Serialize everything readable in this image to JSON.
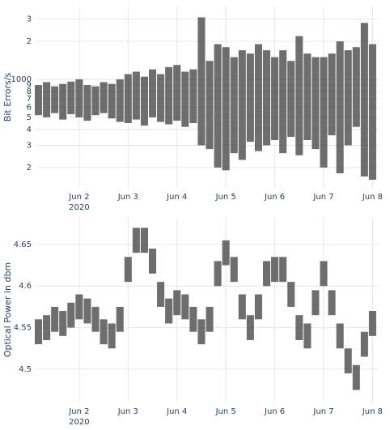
{
  "chart_data": [
    {
      "type": "range",
      "ylabel": "Bit Errors/s",
      "log_y": true,
      "grid": true,
      "color": "#4a4a4a",
      "x": [
        "2020-06-01T04:00",
        "2020-06-01T08:00",
        "2020-06-01T12:00",
        "2020-06-01T16:00",
        "2020-06-01T20:00",
        "2020-06-02T00:00",
        "2020-06-02T04:00",
        "2020-06-02T08:00",
        "2020-06-02T12:00",
        "2020-06-02T16:00",
        "2020-06-02T20:00",
        "2020-06-03T00:00",
        "2020-06-03T04:00",
        "2020-06-03T08:00",
        "2020-06-03T12:00",
        "2020-06-03T16:00",
        "2020-06-03T20:00",
        "2020-06-04T00:00",
        "2020-06-04T04:00",
        "2020-06-04T08:00",
        "2020-06-04T12:00",
        "2020-06-04T16:00",
        "2020-06-04T20:00",
        "2020-06-05T00:00",
        "2020-06-05T04:00",
        "2020-06-05T08:00",
        "2020-06-05T12:00",
        "2020-06-05T16:00",
        "2020-06-05T20:00",
        "2020-06-06T00:00",
        "2020-06-06T04:00",
        "2020-06-06T08:00",
        "2020-06-06T12:00",
        "2020-06-06T16:00",
        "2020-06-06T20:00",
        "2020-06-07T00:00",
        "2020-06-07T04:00",
        "2020-06-07T08:00",
        "2020-06-07T12:00",
        "2020-06-07T16:00",
        "2020-06-07T20:00",
        "2020-06-08T00:00"
      ],
      "low": [
        520,
        500,
        540,
        480,
        530,
        500,
        470,
        520,
        540,
        490,
        460,
        450,
        480,
        430,
        500,
        460,
        440,
        470,
        420,
        450,
        300,
        280,
        200,
        190,
        260,
        230,
        320,
        270,
        300,
        330,
        260,
        350,
        250,
        330,
        280,
        200,
        360,
        180,
        300,
        420,
        170,
        160
      ],
      "high": [
        900,
        950,
        880,
        920,
        960,
        1000,
        900,
        880,
        950,
        920,
        1000,
        1100,
        1150,
        1050,
        1200,
        1100,
        1250,
        1300,
        1150,
        1200,
        3100,
        1400,
        1900,
        1800,
        1500,
        1700,
        1600,
        1900,
        1700,
        1500,
        1700,
        1400,
        2200,
        1600,
        1500,
        1500,
        1600,
        2000,
        1700,
        1800,
        2800,
        1900
      ],
      "xlim": [
        "2020-06-01T03:00",
        "2020-06-08T03:00"
      ],
      "xticks": [
        {
          "value": "2020-06-02T00:00",
          "label": "Jun 2"
        },
        {
          "value": "2020-06-03T00:00",
          "label": "Jun 3"
        },
        {
          "value": "2020-06-04T00:00",
          "label": "Jun 4"
        },
        {
          "value": "2020-06-05T00:00",
          "label": "Jun 5"
        },
        {
          "value": "2020-06-06T00:00",
          "label": "Jun 6"
        },
        {
          "value": "2020-06-07T00:00",
          "label": "Jun 7"
        },
        {
          "value": "2020-06-08T00:00",
          "label": "Jun 8"
        }
      ],
      "x_year_label": "2020",
      "ylim": [
        138,
        3780
      ],
      "yticks": [
        {
          "value": 200,
          "label": "2"
        },
        {
          "value": 300,
          "label": "3"
        },
        {
          "value": 400,
          "label": "4"
        },
        {
          "value": 500,
          "label": "5"
        },
        {
          "value": 600,
          "label": "6"
        },
        {
          "value": 700,
          "label": "7"
        },
        {
          "value": 800,
          "label": "8"
        },
        {
          "value": 900,
          "label": "9"
        },
        1000,
        {
          "value": 2000,
          "label": "2"
        },
        {
          "value": 3000,
          "label": "3"
        }
      ]
    },
    {
      "type": "range",
      "ylabel": "Optical Power in dbm",
      "log_y": false,
      "grid": true,
      "color": "#4a4a4a",
      "x": [
        "2020-06-01T04:00",
        "2020-06-01T08:00",
        "2020-06-01T12:00",
        "2020-06-01T16:00",
        "2020-06-01T20:00",
        "2020-06-02T00:00",
        "2020-06-02T04:00",
        "2020-06-02T08:00",
        "2020-06-02T12:00",
        "2020-06-02T16:00",
        "2020-06-02T20:00",
        "2020-06-03T00:00",
        "2020-06-03T04:00",
        "2020-06-03T08:00",
        "2020-06-03T12:00",
        "2020-06-03T16:00",
        "2020-06-03T20:00",
        "2020-06-04T00:00",
        "2020-06-04T04:00",
        "2020-06-04T08:00",
        "2020-06-04T12:00",
        "2020-06-04T16:00",
        "2020-06-04T20:00",
        "2020-06-05T00:00",
        "2020-06-05T04:00",
        "2020-06-05T08:00",
        "2020-06-05T12:00",
        "2020-06-05T16:00",
        "2020-06-05T20:00",
        "2020-06-06T00:00",
        "2020-06-06T04:00",
        "2020-06-06T08:00",
        "2020-06-06T12:00",
        "2020-06-06T16:00",
        "2020-06-06T20:00",
        "2020-06-07T00:00",
        "2020-06-07T04:00",
        "2020-06-07T08:00",
        "2020-06-07T12:00",
        "2020-06-07T16:00",
        "2020-06-07T20:00",
        "2020-06-08T00:00"
      ],
      "low": [
        4.53,
        4.535,
        4.545,
        4.54,
        4.55,
        4.56,
        4.555,
        4.545,
        4.53,
        4.525,
        4.545,
        4.605,
        4.64,
        4.64,
        4.615,
        4.575,
        4.555,
        4.565,
        4.56,
        4.545,
        4.53,
        4.545,
        4.6,
        4.625,
        4.605,
        4.56,
        4.535,
        4.56,
        4.6,
        4.605,
        4.605,
        4.575,
        4.535,
        4.525,
        4.565,
        4.6,
        4.565,
        4.525,
        4.495,
        4.475,
        4.515,
        4.54
      ],
      "high": [
        4.56,
        4.565,
        4.575,
        4.57,
        4.58,
        4.59,
        4.585,
        4.575,
        4.56,
        4.555,
        4.575,
        4.635,
        4.67,
        4.67,
        4.645,
        4.605,
        4.585,
        4.595,
        4.59,
        4.575,
        4.56,
        4.575,
        4.63,
        4.655,
        4.635,
        4.59,
        4.565,
        4.59,
        4.63,
        4.635,
        4.635,
        4.605,
        4.565,
        4.555,
        4.595,
        4.63,
        4.595,
        4.555,
        4.525,
        4.505,
        4.545,
        4.57
      ],
      "xlim": [
        "2020-06-01T03:00",
        "2020-06-08T03:00"
      ],
      "xticks": [
        {
          "value": "2020-06-02T00:00",
          "label": "Jun 2"
        },
        {
          "value": "2020-06-03T00:00",
          "label": "Jun 3"
        },
        {
          "value": "2020-06-04T00:00",
          "label": "Jun 4"
        },
        {
          "value": "2020-06-05T00:00",
          "label": "Jun 5"
        },
        {
          "value": "2020-06-06T00:00",
          "label": "Jun 6"
        },
        {
          "value": "2020-06-07T00:00",
          "label": "Jun 7"
        },
        {
          "value": "2020-06-08T00:00",
          "label": "Jun 8"
        }
      ],
      "x_year_label": "2020",
      "ylim": [
        4.46,
        4.683
      ],
      "yticks": [
        4.5,
        4.55,
        4.6,
        4.65
      ]
    }
  ]
}
